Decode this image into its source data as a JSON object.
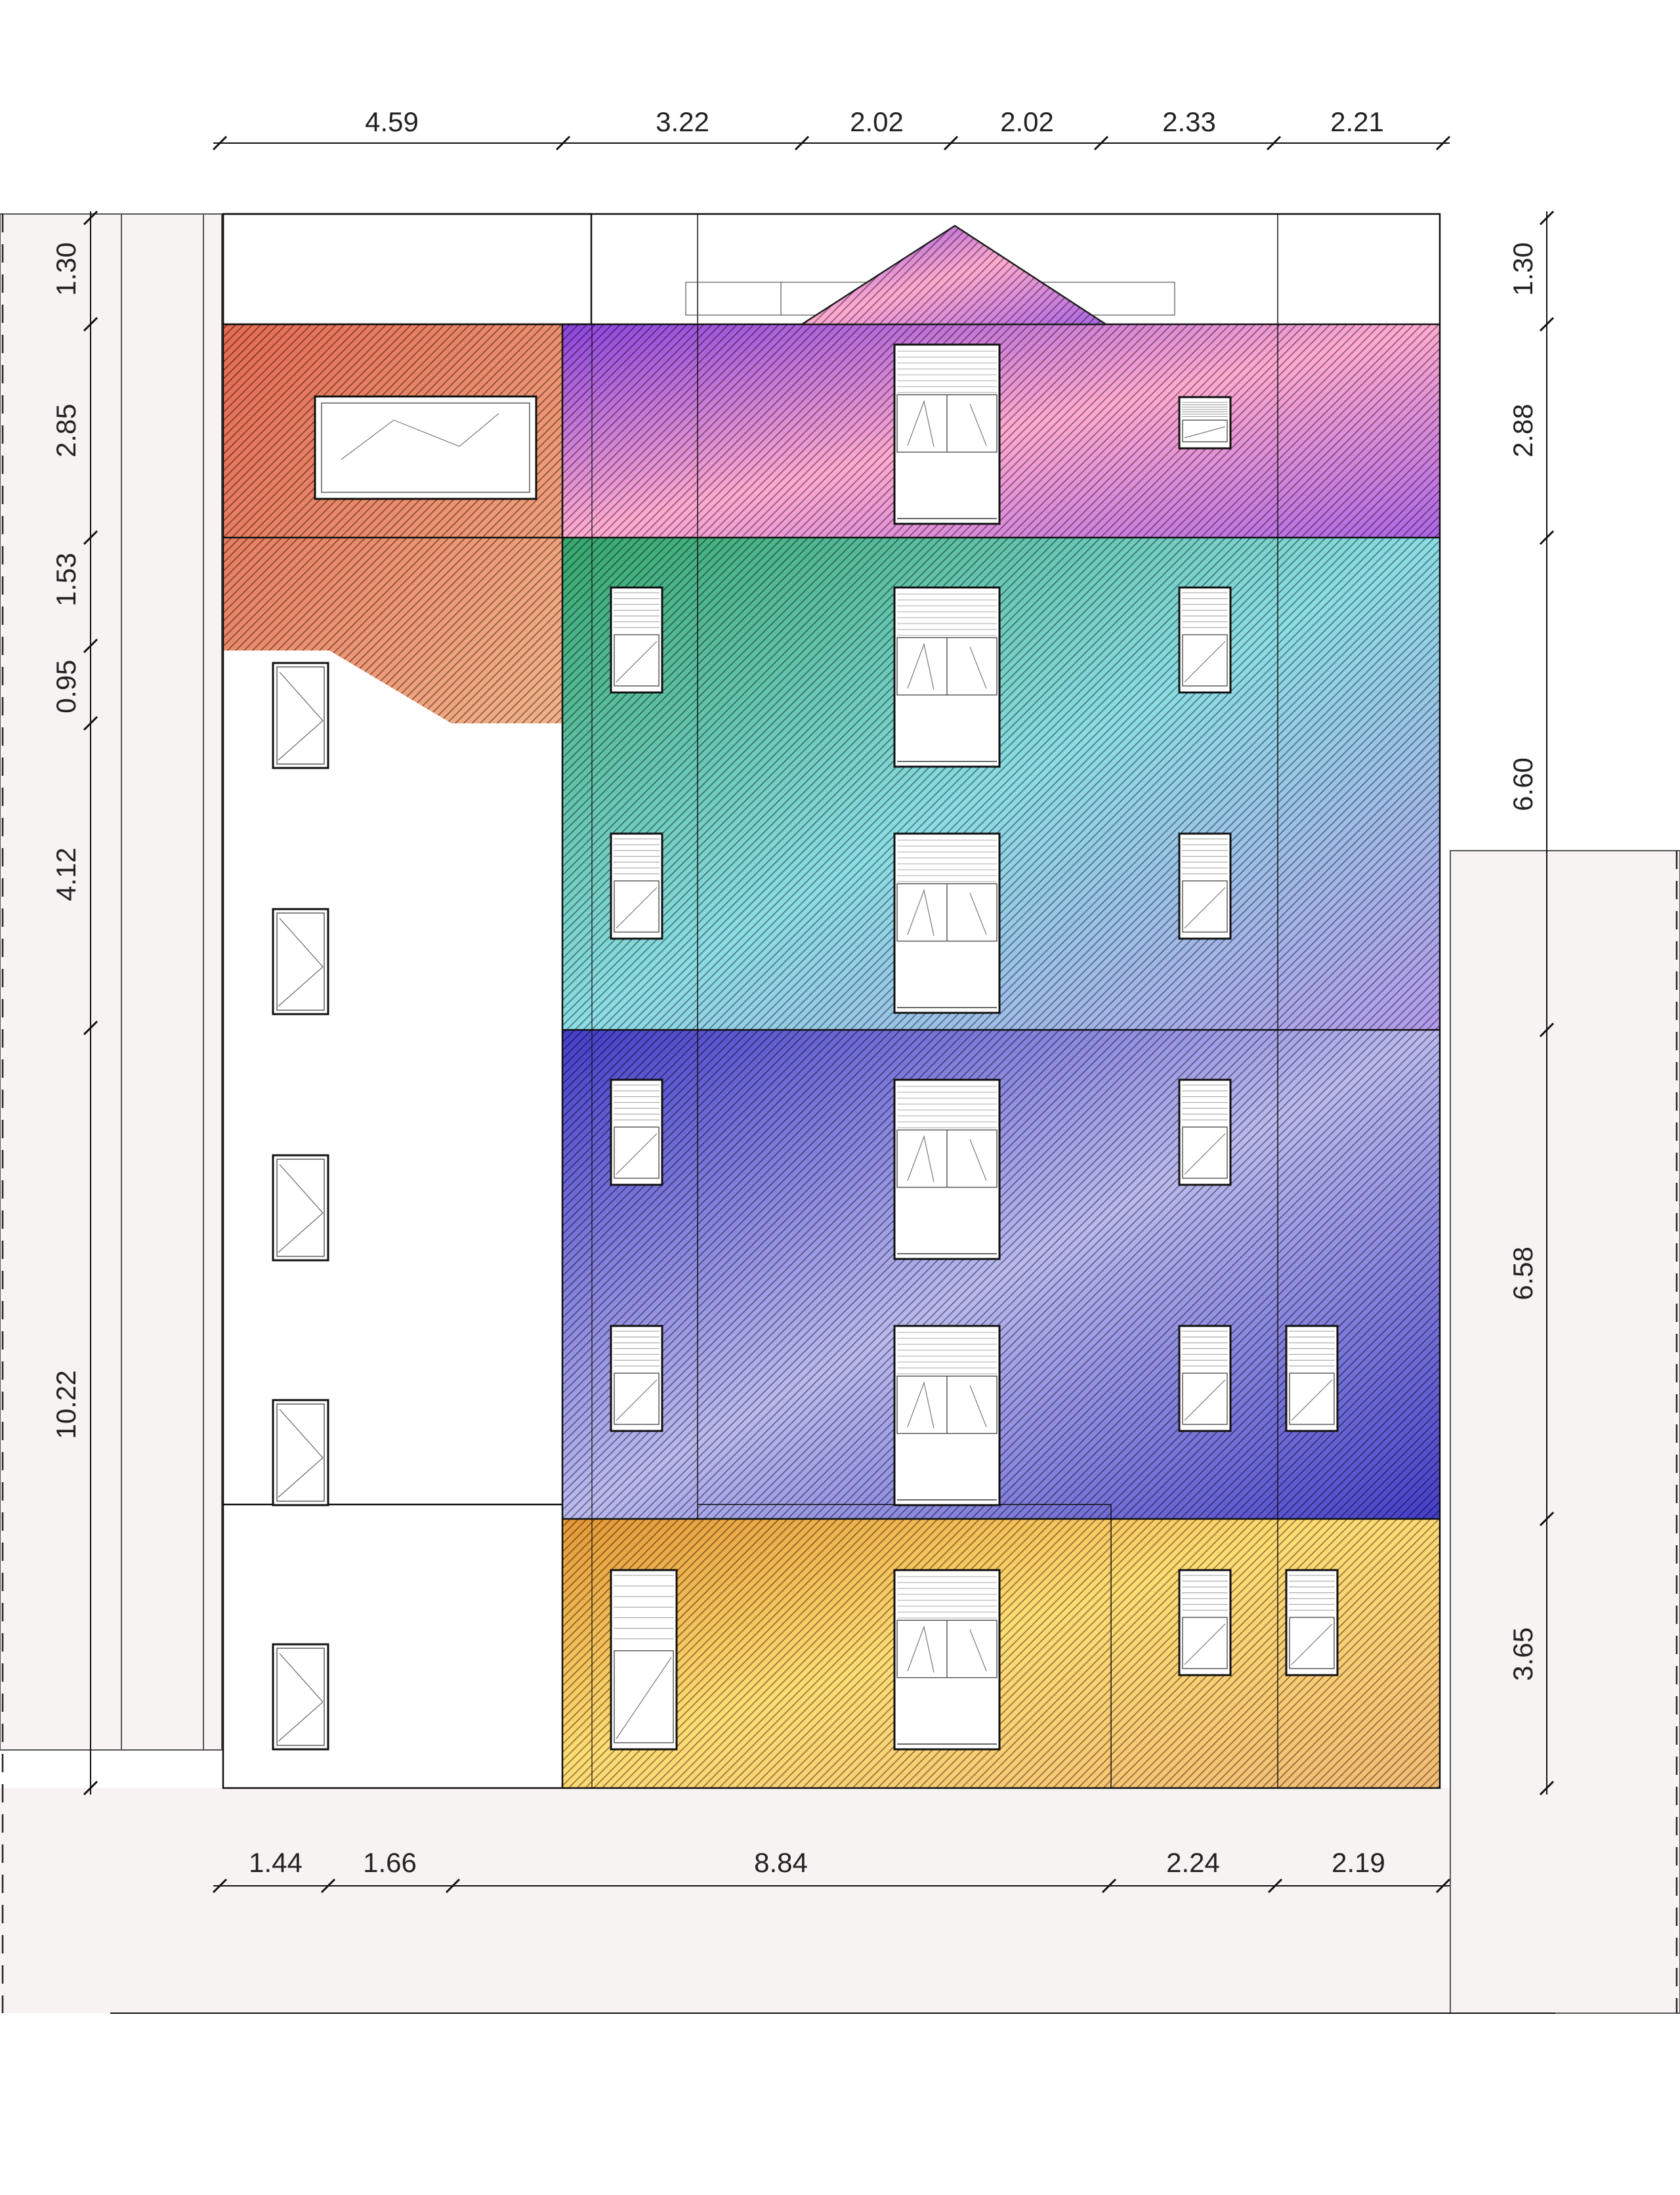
{
  "dimensions": {
    "top": [
      "4.59",
      "3.22",
      "2.02",
      "2.02",
      "2.33",
      "2.21"
    ],
    "bottom": [
      "1.44",
      "1.66",
      "8.84",
      "2.24",
      "2.19"
    ],
    "left": [
      "1.30",
      "2.85",
      "1.53",
      "0.95",
      "4.12",
      "10.22"
    ],
    "right": [
      "1.30",
      "2.88",
      "6.60",
      "6.58",
      "3.65"
    ]
  },
  "colors": {
    "zone_roof_left": [
      "#e0553a",
      "#f0a878"
    ],
    "zone_roof_right": [
      "#7a2ad8",
      "#ff9ec8"
    ],
    "zone_upper": [
      "#1a9a58",
      "#7ad8e0",
      "#a88be8"
    ],
    "zone_middle": [
      "#2a22c0",
      "#4f48d0",
      "#b0b0ec"
    ],
    "zone_ground": [
      "#e08a1a",
      "#ffd860",
      "#f0b060"
    ],
    "neighbor_fill": "#f7f3f3",
    "line": "#111111"
  }
}
